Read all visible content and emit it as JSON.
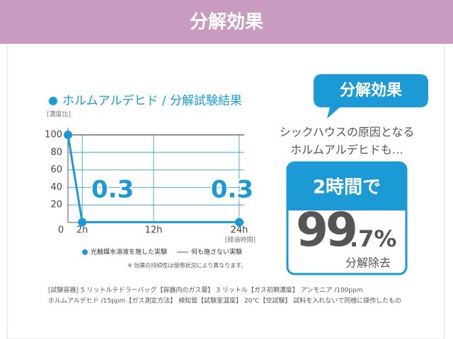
{
  "header": {
    "title": "分解効果"
  },
  "chart_data": {
    "type": "line",
    "title": "ホルムアルデヒド / 分解試験結果",
    "y_label": "[濃度比]",
    "x_label": "[経過時間]",
    "xlim": [
      0,
      24.7
    ],
    "ylim": [
      0,
      100
    ],
    "xticks": [
      {
        "value": 0,
        "label": "0"
      },
      {
        "value": 2,
        "label": "2h"
      },
      {
        "value": 12,
        "label": "12h"
      },
      {
        "value": 24,
        "label": "24h"
      }
    ],
    "yticks": [
      20,
      40,
      60,
      80,
      100
    ],
    "grid": true,
    "series": [
      {
        "name": "光触媒水溶液を施した実験",
        "color": "#1b9ad6",
        "x": [
          0,
          2,
          24
        ],
        "values": [
          100,
          0.3,
          0.3
        ]
      },
      {
        "name": "何も施さない実験",
        "color": "#555555",
        "x": [
          0,
          24.7
        ],
        "values": [
          100,
          100
        ]
      }
    ],
    "note": "※ 効果の持続性は使用状況により異なります。"
  },
  "bubble": "分解効果",
  "intro": [
    "シックハウスの原因となる",
    "ホルムアルデヒドも…"
  ],
  "result": {
    "lead": "2時間で",
    "main": "99",
    "decimal": ".7%",
    "caption": "分解除去"
  },
  "footer": [
    "[試験容器] 5 リットルテドラーバッグ【容器内のガス量】 3 リットル【ガス初期濃度】 アンモニア /100ppm",
    "ホルムアルデヒド /15ppm【ガス測定方法】 検知管【試験室温度】 20℃【空試験】 試料を入れないで同様に操作したもの"
  ]
}
